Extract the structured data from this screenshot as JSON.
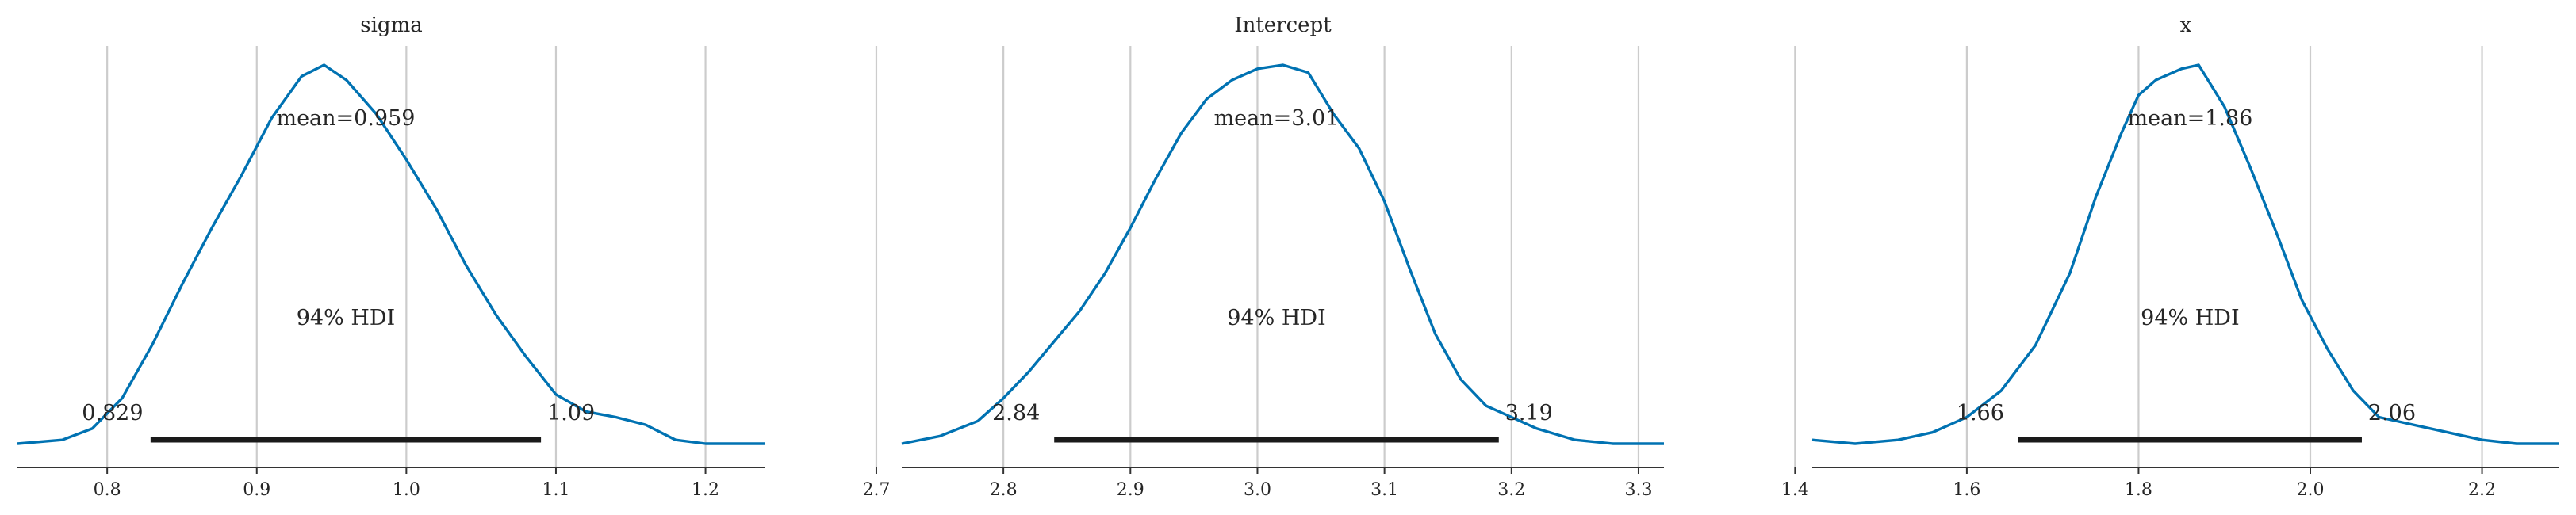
{
  "chart_data": [
    {
      "type": "line",
      "title": "sigma",
      "xlim": [
        0.74,
        1.24
      ],
      "xticks": [
        0.8,
        0.9,
        1.0,
        1.1,
        1.2
      ],
      "xtick_labels": [
        "0.8",
        "0.9",
        "1.0",
        "1.1",
        "1.2"
      ],
      "grid": true,
      "mean_label": "mean=0.959",
      "hdi_label": "94% HDI",
      "hdi": [
        0.829,
        1.09
      ],
      "hdi_low_label": "0.829",
      "hdi_high_label": "1.09",
      "colors": {
        "line": "#0072b2",
        "hdi": "#1a1a1a"
      },
      "x": [
        0.74,
        0.77,
        0.79,
        0.81,
        0.83,
        0.85,
        0.87,
        0.89,
        0.91,
        0.93,
        0.945,
        0.96,
        0.98,
        1.0,
        1.02,
        1.04,
        1.06,
        1.08,
        1.1,
        1.12,
        1.14,
        1.16,
        1.18,
        1.2,
        1.24
      ],
      "density": [
        0.0,
        0.01,
        0.04,
        0.12,
        0.26,
        0.42,
        0.57,
        0.71,
        0.86,
        0.97,
        1.0,
        0.96,
        0.87,
        0.75,
        0.62,
        0.47,
        0.34,
        0.23,
        0.13,
        0.085,
        0.07,
        0.05,
        0.01,
        0.0,
        0.0
      ]
    },
    {
      "type": "line",
      "title": "Intercept",
      "xlim": [
        2.72,
        3.32
      ],
      "xticks": [
        2.7,
        2.8,
        2.9,
        3.0,
        3.1,
        3.2,
        3.3
      ],
      "xtick_labels": [
        "2.7",
        "2.8",
        "2.9",
        "3.0",
        "3.1",
        "3.2",
        "3.3"
      ],
      "grid": true,
      "mean_label": "mean=3.01",
      "hdi_label": "94% HDI",
      "hdi": [
        2.84,
        3.19
      ],
      "hdi_low_label": "2.84",
      "hdi_high_label": "3.19",
      "colors": {
        "line": "#0072b2",
        "hdi": "#1a1a1a"
      },
      "x": [
        2.72,
        2.75,
        2.78,
        2.8,
        2.82,
        2.84,
        2.86,
        2.88,
        2.9,
        2.92,
        2.94,
        2.96,
        2.98,
        3.0,
        3.02,
        3.04,
        3.06,
        3.08,
        3.1,
        3.12,
        3.14,
        3.16,
        3.18,
        3.2,
        3.22,
        3.25,
        3.28,
        3.32
      ],
      "density": [
        0.0,
        0.02,
        0.06,
        0.12,
        0.19,
        0.27,
        0.35,
        0.45,
        0.57,
        0.7,
        0.82,
        0.91,
        0.96,
        0.99,
        1.0,
        0.98,
        0.87,
        0.78,
        0.64,
        0.46,
        0.29,
        0.17,
        0.1,
        0.07,
        0.04,
        0.01,
        0.0,
        0.0
      ]
    },
    {
      "type": "line",
      "title": "x",
      "xlim": [
        1.42,
        2.29
      ],
      "xticks": [
        1.4,
        1.6,
        1.8,
        2.0,
        2.2
      ],
      "xtick_labels": [
        "1.4",
        "1.6",
        "1.8",
        "2.0",
        "2.2"
      ],
      "grid": true,
      "mean_label": "mean=1.86",
      "hdi_label": "94% HDI",
      "hdi": [
        1.66,
        2.06
      ],
      "hdi_low_label": "1.66",
      "hdi_high_label": "2.06",
      "colors": {
        "line": "#0072b2",
        "hdi": "#1a1a1a"
      },
      "x": [
        1.42,
        1.47,
        1.52,
        1.56,
        1.6,
        1.64,
        1.68,
        1.72,
        1.75,
        1.78,
        1.8,
        1.82,
        1.85,
        1.87,
        1.9,
        1.93,
        1.96,
        1.99,
        2.02,
        2.05,
        2.08,
        2.12,
        2.16,
        2.2,
        2.24,
        2.29
      ],
      "density": [
        0.01,
        0.0,
        0.01,
        0.03,
        0.07,
        0.14,
        0.26,
        0.45,
        0.65,
        0.82,
        0.92,
        0.96,
        0.99,
        1.0,
        0.89,
        0.73,
        0.56,
        0.38,
        0.25,
        0.14,
        0.07,
        0.05,
        0.03,
        0.01,
        0.0,
        0.0
      ]
    }
  ]
}
